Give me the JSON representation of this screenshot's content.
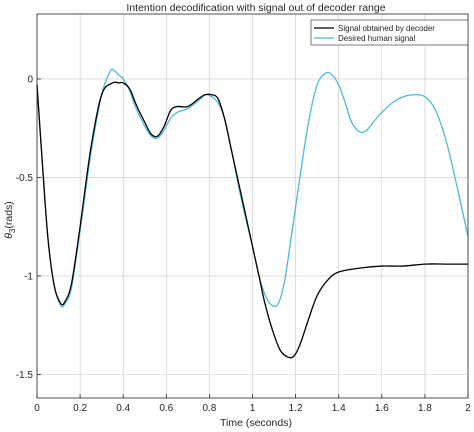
{
  "chart_data": {
    "type": "line",
    "title": "Intention decodification with signal out of decoder range",
    "xlabel": "Time (seconds)",
    "ylabel_main": "θ",
    "ylabel_sub": "3",
    "ylabel_unit": "(rads)",
    "xlim": [
      0,
      2
    ],
    "ylim": [
      -1.62,
      0.33
    ],
    "xticks": [
      0,
      0.2,
      0.4,
      0.6,
      0.8,
      1,
      1.2,
      1.4,
      1.6,
      1.8,
      2
    ],
    "xtick_labels": [
      "0",
      "0.2",
      "0.4",
      "0.6",
      "0.8",
      "1",
      "1.2",
      "1.4",
      "1.6",
      "1.8",
      "2"
    ],
    "yticks": [
      0,
      -0.5,
      -1,
      -1.5
    ],
    "ytick_labels": [
      "0",
      "-0.5",
      "-1",
      "-1.5"
    ],
    "grid": true,
    "legend_position": "top-right",
    "series": [
      {
        "name": "Signal obtained by decoder",
        "color": "#000000",
        "x": [
          0,
          0.02,
          0.05,
          0.08,
          0.11,
          0.13,
          0.16,
          0.2,
          0.25,
          0.3,
          0.35,
          0.38,
          0.4,
          0.43,
          0.46,
          0.5,
          0.53,
          0.56,
          0.59,
          0.62,
          0.65,
          0.7,
          0.75,
          0.78,
          0.81,
          0.84,
          0.87,
          0.9,
          0.95,
          1,
          1.03,
          1.06,
          1.1,
          1.13,
          1.16,
          1.19,
          1.22,
          1.26,
          1.3,
          1.35,
          1.4,
          1.5,
          1.6,
          1.7,
          1.8,
          1.9,
          2
        ],
        "y": [
          -0.03,
          -0.35,
          -0.8,
          -1.05,
          -1.14,
          -1.13,
          -1.04,
          -0.75,
          -0.35,
          -0.08,
          -0.02,
          -0.02,
          -0.02,
          -0.05,
          -0.13,
          -0.22,
          -0.28,
          -0.29,
          -0.24,
          -0.16,
          -0.14,
          -0.14,
          -0.1,
          -0.08,
          -0.08,
          -0.1,
          -0.2,
          -0.35,
          -0.6,
          -0.85,
          -1.0,
          -1.15,
          -1.3,
          -1.38,
          -1.41,
          -1.41,
          -1.35,
          -1.22,
          -1.1,
          -1.02,
          -0.98,
          -0.96,
          -0.95,
          -0.95,
          -0.94,
          -0.94,
          -0.94
        ]
      },
      {
        "name": "Desired human signal",
        "color": "#4db8e0",
        "x": [
          0,
          0.02,
          0.05,
          0.08,
          0.11,
          0.13,
          0.16,
          0.2,
          0.25,
          0.3,
          0.34,
          0.36,
          0.38,
          0.4,
          0.43,
          0.46,
          0.5,
          0.53,
          0.56,
          0.59,
          0.62,
          0.65,
          0.7,
          0.75,
          0.78,
          0.81,
          0.84,
          0.87,
          0.9,
          0.95,
          1,
          1.03,
          1.06,
          1.09,
          1.12,
          1.15,
          1.18,
          1.22,
          1.26,
          1.3,
          1.34,
          1.37,
          1.4,
          1.43,
          1.46,
          1.5,
          1.53,
          1.56,
          1.6,
          1.65,
          1.7,
          1.75,
          1.8,
          1.85,
          1.9,
          1.95,
          2
        ],
        "y": [
          -0.03,
          -0.35,
          -0.8,
          -1.05,
          -1.15,
          -1.14,
          -1.06,
          -0.77,
          -0.38,
          -0.08,
          0.04,
          0.04,
          0.02,
          0.0,
          -0.06,
          -0.15,
          -0.24,
          -0.29,
          -0.3,
          -0.26,
          -0.2,
          -0.17,
          -0.15,
          -0.11,
          -0.08,
          -0.09,
          -0.12,
          -0.2,
          -0.35,
          -0.62,
          -0.85,
          -1.0,
          -1.1,
          -1.15,
          -1.14,
          -1.02,
          -0.8,
          -0.5,
          -0.22,
          -0.03,
          0.03,
          0.02,
          -0.03,
          -0.12,
          -0.22,
          -0.27,
          -0.26,
          -0.22,
          -0.17,
          -0.12,
          -0.09,
          -0.08,
          -0.09,
          -0.16,
          -0.32,
          -0.55,
          -0.8
        ]
      }
    ]
  }
}
